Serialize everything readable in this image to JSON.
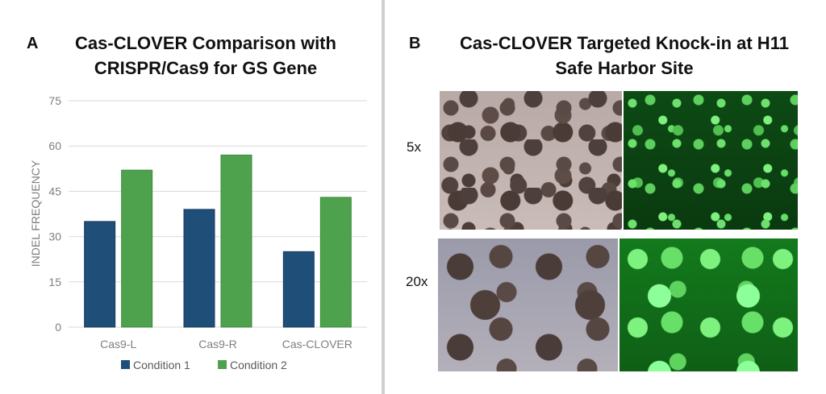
{
  "panel_a": {
    "letter": "A",
    "title_line1": "Cas-CLOVER Comparison with",
    "title_line2": "CRISPR/Cas9  for GS Gene"
  },
  "panel_b": {
    "letter": "B",
    "title_line1": "Cas-CLOVER Targeted Knock-in at H11",
    "title_line2": "Safe Harbor Site",
    "rows": [
      {
        "magnification": "5x"
      },
      {
        "magnification": "20x"
      }
    ]
  },
  "colors": {
    "condition1": "#1f4e79",
    "condition2": "#4ea24e",
    "grid": "#d9d9d9",
    "tick_text": "#7f7f7f"
  },
  "chart_data": {
    "type": "bar",
    "categories": [
      "Cas9-L",
      "Cas9-R",
      "Cas-CLOVER"
    ],
    "series": [
      {
        "name": "Condition 1",
        "values": [
          35,
          39,
          25
        ]
      },
      {
        "name": "Condition 2",
        "values": [
          52,
          57,
          43
        ]
      }
    ],
    "title": "Cas-CLOVER Comparison with CRISPR/Cas9  for GS Gene",
    "xlabel": "",
    "ylabel": "INDEL FREQUENCY",
    "ylim": [
      0,
      75
    ],
    "yticks": [
      "0",
      "15",
      "30",
      "45",
      "60",
      "75"
    ],
    "grid": true,
    "legend_position": "bottom"
  }
}
